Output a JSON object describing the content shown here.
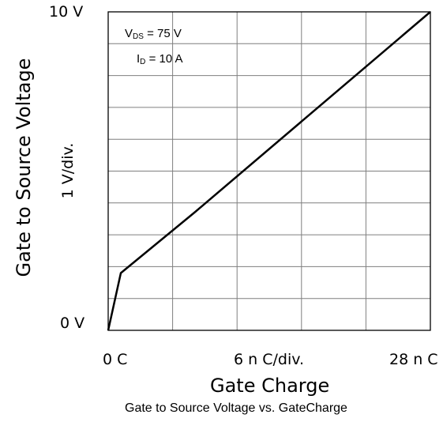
{
  "chart_data": {
    "type": "line",
    "title": "",
    "caption": "Gate to Source Voltage vs. GateCharge",
    "xlabel": "Gate Charge",
    "ylabel": "Gate to Source Voltage",
    "x_tick_labels": {
      "start": "0  C",
      "middle": "6 n C/div.",
      "end": "28 n C"
    },
    "y_tick_labels": {
      "top": "10  V",
      "middle": "1  V/div.",
      "bottom": "0  V"
    },
    "xlim": [
      0,
      28
    ],
    "ylim": [
      0,
      10
    ],
    "x_div": 6,
    "y_div": 1,
    "grid": true,
    "series": [
      {
        "x": [
          0,
          1.1,
          7.5,
          28
        ],
        "y": [
          0,
          1.8,
          3.7,
          10
        ]
      }
    ],
    "annotations": {
      "vds_label": "V",
      "vds_sub": "DS",
      "vds_value": " = 75 V",
      "id_label": "I",
      "id_sub": "D",
      "id_value": " = 10 A"
    }
  },
  "colors": {
    "line": "#000000",
    "grid": "#7f7f7f",
    "axes": "#000000",
    "background": "#ffffff"
  }
}
